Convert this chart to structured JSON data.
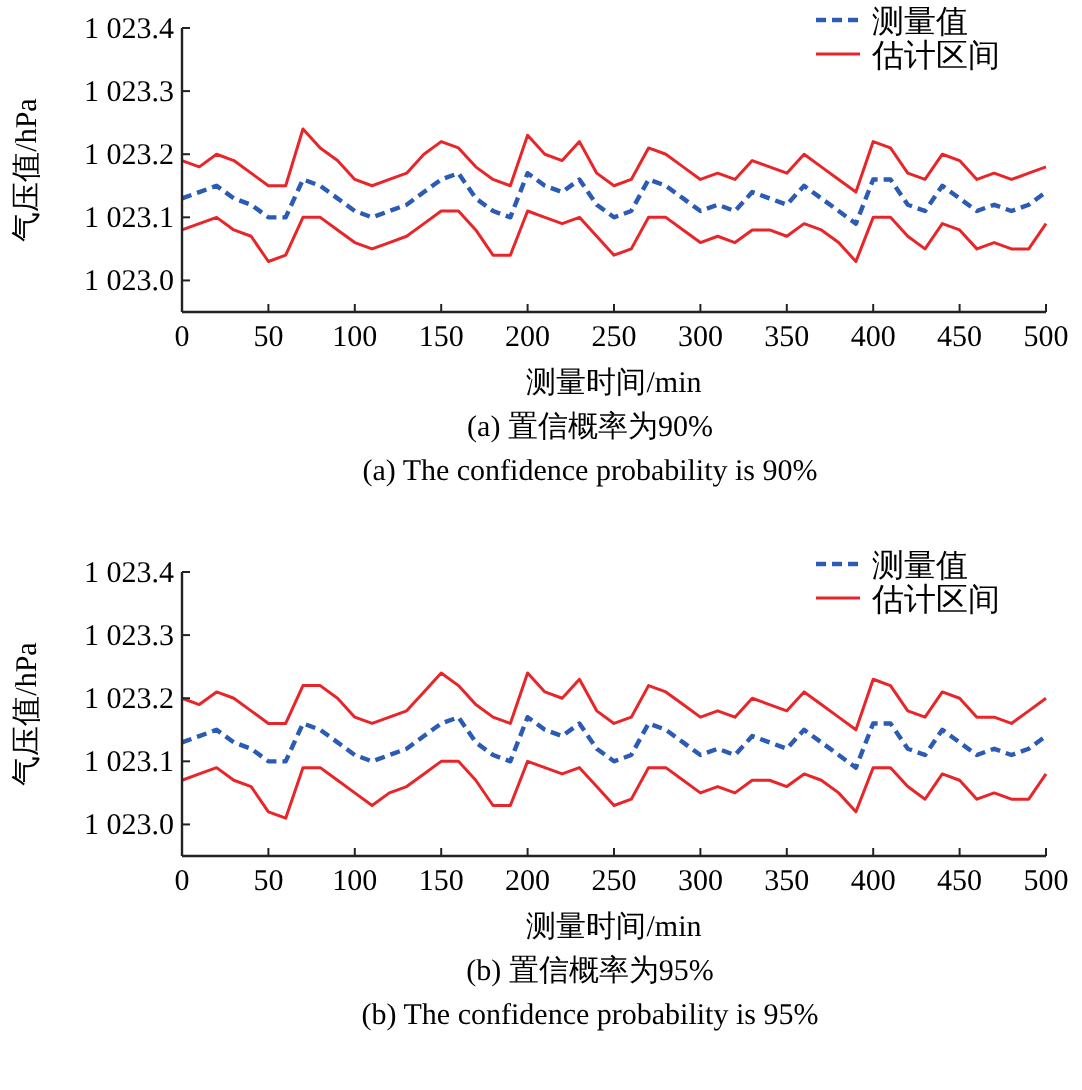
{
  "chart_data": [
    {
      "type": "line",
      "title": "(a) 置信概率为90%",
      "subtitle": "(a) The confidence probability is 90%",
      "xlabel": "测量时间/min",
      "ylabel": "气压值/hPa",
      "legend": "top right",
      "xlim": [
        0,
        500
      ],
      "xticks": [
        0,
        50,
        100,
        150,
        200,
        250,
        300,
        350,
        400,
        450,
        500
      ],
      "ylim": [
        1022.95,
        1023.4
      ],
      "yticks": [
        {
          "value": 1023.0,
          "label": "1 023.0"
        },
        {
          "value": 1023.1,
          "label": "1 023.1"
        },
        {
          "value": 1023.2,
          "label": "1 023.2"
        },
        {
          "value": 1023.3,
          "label": "1 023.3"
        },
        {
          "value": 1023.4,
          "label": "1 023.4"
        }
      ],
      "x": [
        0,
        10,
        20,
        30,
        40,
        50,
        60,
        70,
        80,
        90,
        100,
        110,
        120,
        130,
        140,
        150,
        160,
        170,
        180,
        190,
        200,
        210,
        220,
        230,
        240,
        250,
        260,
        270,
        280,
        290,
        300,
        310,
        320,
        330,
        340,
        350,
        360,
        370,
        380,
        390,
        400,
        410,
        420,
        430,
        440,
        450,
        460,
        470,
        480,
        490,
        500
      ],
      "series": [
        {
          "name": "估计区间",
          "color": "#e8262a",
          "line_style": "solid",
          "values": [
            1023.19,
            1023.18,
            1023.2,
            1023.19,
            1023.17,
            1023.15,
            1023.15,
            1023.24,
            1023.21,
            1023.19,
            1023.16,
            1023.15,
            1023.16,
            1023.17,
            1023.2,
            1023.22,
            1023.21,
            1023.18,
            1023.16,
            1023.15,
            1023.23,
            1023.2,
            1023.19,
            1023.22,
            1023.17,
            1023.15,
            1023.16,
            1023.21,
            1023.2,
            1023.18,
            1023.16,
            1023.17,
            1023.16,
            1023.19,
            1023.18,
            1023.17,
            1023.2,
            1023.18,
            1023.16,
            1023.14,
            1023.22,
            1023.21,
            1023.17,
            1023.16,
            1023.2,
            1023.19,
            1023.16,
            1023.17,
            1023.16,
            1023.17,
            1023.18
          ]
        },
        {
          "color": "#e8262a",
          "line_style": "solid",
          "values": [
            1023.08,
            1023.09,
            1023.1,
            1023.08,
            1023.07,
            1023.03,
            1023.04,
            1023.1,
            1023.1,
            1023.08,
            1023.06,
            1023.05,
            1023.06,
            1023.07,
            1023.09,
            1023.11,
            1023.11,
            1023.08,
            1023.04,
            1023.04,
            1023.11,
            1023.1,
            1023.09,
            1023.1,
            1023.07,
            1023.04,
            1023.05,
            1023.1,
            1023.1,
            1023.08,
            1023.06,
            1023.07,
            1023.06,
            1023.08,
            1023.08,
            1023.07,
            1023.09,
            1023.08,
            1023.06,
            1023.03,
            1023.1,
            1023.1,
            1023.07,
            1023.05,
            1023.09,
            1023.08,
            1023.05,
            1023.06,
            1023.05,
            1023.05,
            1023.09
          ]
        },
        {
          "name": "测量值",
          "color": "#2b5bb5",
          "line_style": "dashed",
          "values": [
            1023.13,
            1023.14,
            1023.15,
            1023.13,
            1023.12,
            1023.1,
            1023.1,
            1023.16,
            1023.15,
            1023.13,
            1023.11,
            1023.1,
            1023.11,
            1023.12,
            1023.14,
            1023.16,
            1023.17,
            1023.13,
            1023.11,
            1023.1,
            1023.17,
            1023.15,
            1023.14,
            1023.16,
            1023.12,
            1023.1,
            1023.11,
            1023.16,
            1023.15,
            1023.13,
            1023.11,
            1023.12,
            1023.11,
            1023.14,
            1023.13,
            1023.12,
            1023.15,
            1023.13,
            1023.11,
            1023.09,
            1023.16,
            1023.16,
            1023.12,
            1023.11,
            1023.15,
            1023.13,
            1023.11,
            1023.12,
            1023.11,
            1023.12,
            1023.14
          ]
        }
      ]
    },
    {
      "type": "line",
      "title": "(b) 置信概率为95%",
      "subtitle": "(b) The confidence probability is 95%",
      "xlabel": "测量时间/min",
      "ylabel": "气压值/hPa",
      "legend": "top right",
      "xlim": [
        0,
        500
      ],
      "xticks": [
        0,
        50,
        100,
        150,
        200,
        250,
        300,
        350,
        400,
        450,
        500
      ],
      "ylim": [
        1022.95,
        1023.4
      ],
      "yticks": [
        {
          "value": 1023.0,
          "label": "1 023.0"
        },
        {
          "value": 1023.1,
          "label": "1 023.1"
        },
        {
          "value": 1023.2,
          "label": "1 023.2"
        },
        {
          "value": 1023.3,
          "label": "1 023.3"
        },
        {
          "value": 1023.4,
          "label": "1 023.4"
        }
      ],
      "x": [
        0,
        10,
        20,
        30,
        40,
        50,
        60,
        70,
        80,
        90,
        100,
        110,
        120,
        130,
        140,
        150,
        160,
        170,
        180,
        190,
        200,
        210,
        220,
        230,
        240,
        250,
        260,
        270,
        280,
        290,
        300,
        310,
        320,
        330,
        340,
        350,
        360,
        370,
        380,
        390,
        400,
        410,
        420,
        430,
        440,
        450,
        460,
        470,
        480,
        490,
        500
      ],
      "series": [
        {
          "name": "估计区间",
          "color": "#e8262a",
          "line_style": "solid",
          "values": [
            1023.2,
            1023.19,
            1023.21,
            1023.2,
            1023.18,
            1023.16,
            1023.16,
            1023.22,
            1023.22,
            1023.2,
            1023.17,
            1023.16,
            1023.17,
            1023.18,
            1023.21,
            1023.24,
            1023.22,
            1023.19,
            1023.17,
            1023.16,
            1023.24,
            1023.21,
            1023.2,
            1023.23,
            1023.18,
            1023.16,
            1023.17,
            1023.22,
            1023.21,
            1023.19,
            1023.17,
            1023.18,
            1023.17,
            1023.2,
            1023.19,
            1023.18,
            1023.21,
            1023.19,
            1023.17,
            1023.15,
            1023.23,
            1023.22,
            1023.18,
            1023.17,
            1023.21,
            1023.2,
            1023.17,
            1023.17,
            1023.16,
            1023.18,
            1023.2
          ]
        },
        {
          "color": "#e8262a",
          "line_style": "solid",
          "values": [
            1023.07,
            1023.08,
            1023.09,
            1023.07,
            1023.06,
            1023.02,
            1023.01,
            1023.09,
            1023.09,
            1023.07,
            1023.05,
            1023.03,
            1023.05,
            1023.06,
            1023.08,
            1023.1,
            1023.1,
            1023.07,
            1023.03,
            1023.03,
            1023.1,
            1023.09,
            1023.08,
            1023.09,
            1023.06,
            1023.03,
            1023.04,
            1023.09,
            1023.09,
            1023.07,
            1023.05,
            1023.06,
            1023.05,
            1023.07,
            1023.07,
            1023.06,
            1023.08,
            1023.07,
            1023.05,
            1023.02,
            1023.09,
            1023.09,
            1023.06,
            1023.04,
            1023.08,
            1023.07,
            1023.04,
            1023.05,
            1023.04,
            1023.04,
            1023.08
          ]
        },
        {
          "name": "测量值",
          "color": "#2b5bb5",
          "line_style": "dashed",
          "values": [
            1023.13,
            1023.14,
            1023.15,
            1023.13,
            1023.12,
            1023.1,
            1023.1,
            1023.16,
            1023.15,
            1023.13,
            1023.11,
            1023.1,
            1023.11,
            1023.12,
            1023.14,
            1023.16,
            1023.17,
            1023.13,
            1023.11,
            1023.1,
            1023.17,
            1023.15,
            1023.14,
            1023.16,
            1023.12,
            1023.1,
            1023.11,
            1023.16,
            1023.15,
            1023.13,
            1023.11,
            1023.12,
            1023.11,
            1023.14,
            1023.13,
            1023.12,
            1023.15,
            1023.13,
            1023.11,
            1023.09,
            1023.16,
            1023.16,
            1023.12,
            1023.11,
            1023.15,
            1023.13,
            1023.11,
            1023.12,
            1023.11,
            1023.12,
            1023.14
          ]
        }
      ]
    }
  ]
}
